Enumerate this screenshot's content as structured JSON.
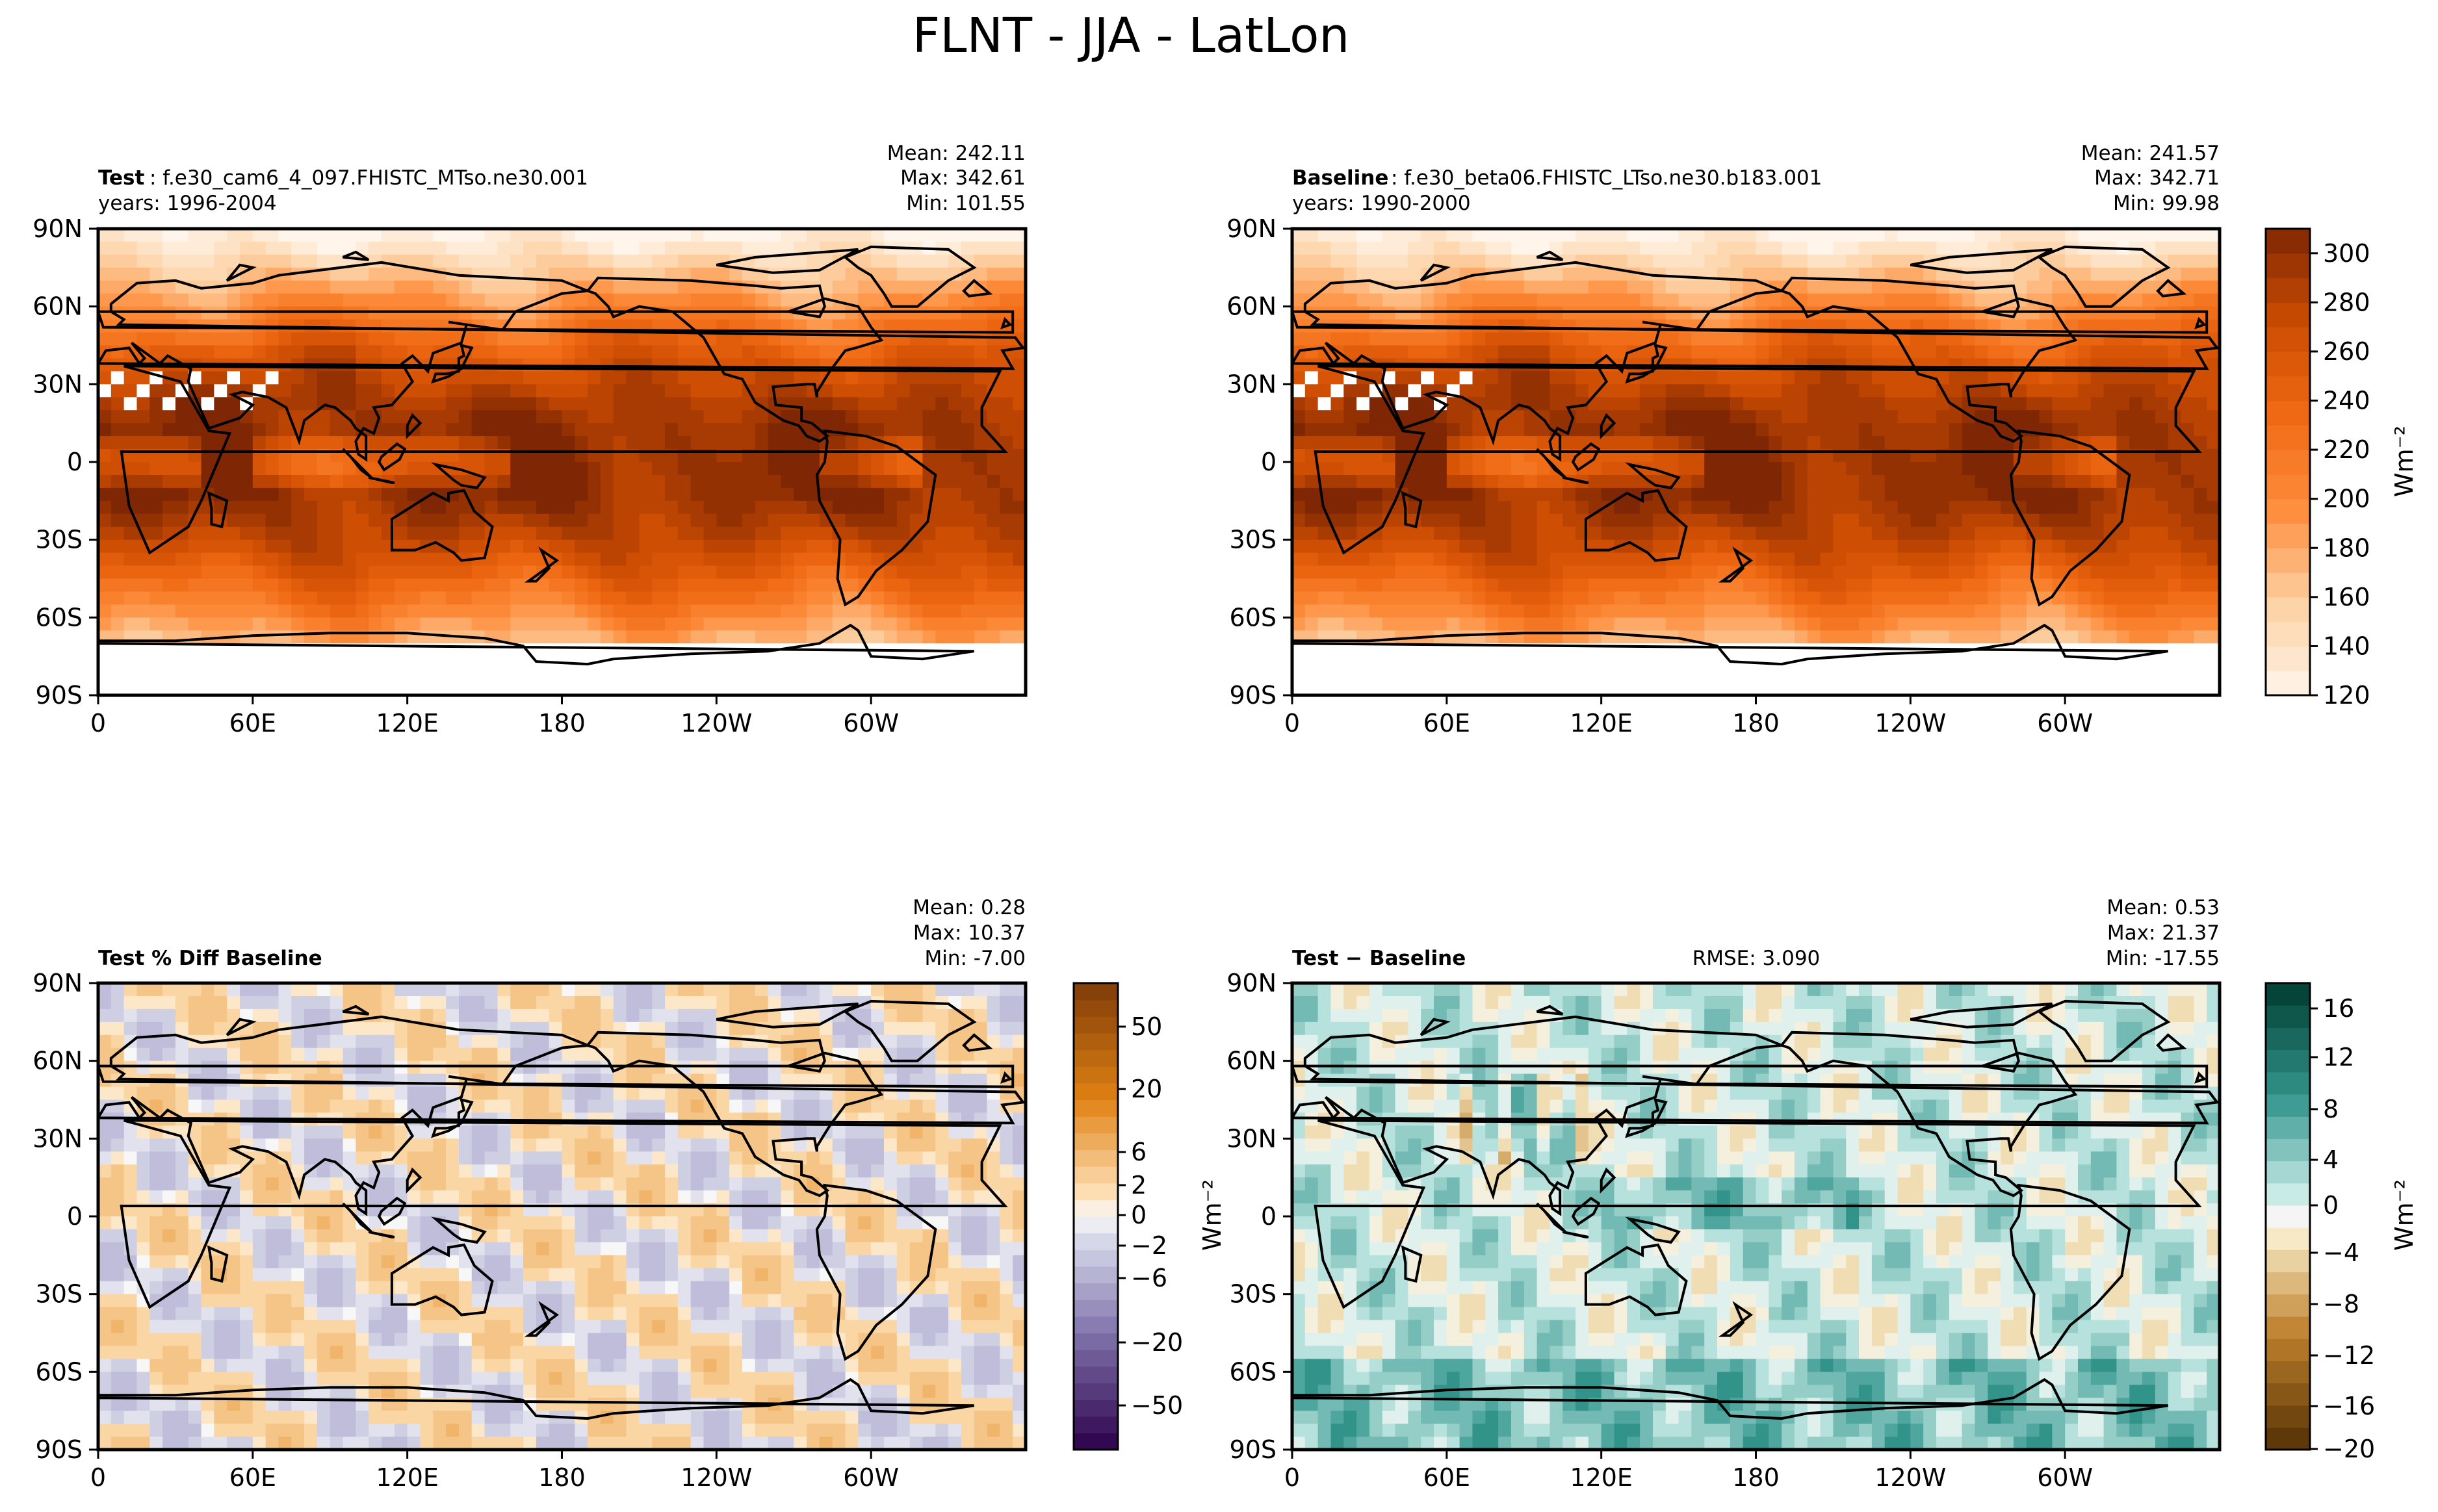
{
  "figure_title": "FLNT - JJA - LatLon",
  "x_ticks": [
    "0",
    "60E",
    "120E",
    "180",
    "120W",
    "60W"
  ],
  "y_ticks": [
    "90N",
    "60N",
    "30N",
    "0",
    "30S",
    "60S",
    "90S"
  ],
  "panels": [
    {
      "id": "test",
      "label_bold": "Test",
      "label_rest": ": f.e30_cam6_4_097.FHISTC_MTso.ne30.001",
      "years": "years: 1996-2004",
      "stats": [
        "Mean: 242.11",
        "Max: 342.61",
        "Min: 101.55"
      ],
      "rmse": "",
      "colormap": "Oranges"
    },
    {
      "id": "baseline",
      "label_bold": "Baseline",
      "label_rest": ": f.e30_beta06.FHISTC_LTso.ne30.b183.001",
      "years": "years: 1990-2000",
      "stats": [
        "Mean: 241.57",
        "Max: 342.71",
        "Min: 99.98"
      ],
      "rmse": "",
      "colormap": "Oranges"
    },
    {
      "id": "pctdiff",
      "label_bold": "Test % Diff Baseline",
      "label_rest": "",
      "years": "",
      "stats": [
        "Mean:  0.28",
        "Max: 10.37",
        "Min: -7.00"
      ],
      "rmse": "",
      "colormap": "PuOr_r"
    },
    {
      "id": "diff",
      "label_bold": "Test − Baseline",
      "label_rest": "",
      "years": "",
      "stats": [
        "Mean:  0.53",
        "Max: 21.37",
        "Min: -17.55"
      ],
      "rmse": "RMSE: 3.090",
      "colormap": "BrBG"
    }
  ],
  "colorbars": {
    "top": {
      "ticks": [
        "300",
        "280",
        "260",
        "240",
        "220",
        "200",
        "180",
        "160",
        "140",
        "120"
      ],
      "unit": "Wm⁻²"
    },
    "pctdiff": {
      "ticks": [
        "50",
        "20",
        "6",
        "2",
        "0",
        "−2",
        "−6",
        "−20",
        "−50"
      ],
      "unit": ""
    },
    "diff": {
      "ticks": [
        "16",
        "12",
        "8",
        "4",
        "0",
        "−4",
        "−8",
        "−12",
        "−16",
        "−20"
      ],
      "unit": "Wm⁻²"
    }
  },
  "chart_data": [
    {
      "type": "heatmap",
      "title": "Test : f.e30_cam6_4_097.FHISTC_MTso.ne30.001",
      "subtitle": "years: 1996-2004",
      "stats": {
        "mean": 242.11,
        "max": 342.61,
        "min": 101.55
      },
      "units": "Wm⁻²",
      "xlim": [
        0,
        360
      ],
      "ylim": [
        -90,
        90
      ],
      "xticks": [
        "0",
        "60E",
        "120E",
        "180",
        "120W",
        "60W"
      ],
      "yticks": [
        "90N",
        "60N",
        "30N",
        "0",
        "30S",
        "60S",
        "90S"
      ],
      "colorbar_levels": [
        120,
        130,
        140,
        150,
        160,
        170,
        180,
        190,
        200,
        210,
        220,
        230,
        240,
        250,
        260,
        270,
        280,
        290,
        300,
        310
      ]
    },
    {
      "type": "heatmap",
      "title": "Baseline : f.e30_beta06.FHISTC_LTso.ne30.b183.001",
      "subtitle": "years: 1990-2000",
      "stats": {
        "mean": 241.57,
        "max": 342.71,
        "min": 99.98
      },
      "units": "Wm⁻²",
      "xlim": [
        0,
        360
      ],
      "ylim": [
        -90,
        90
      ],
      "xticks": [
        "0",
        "60E",
        "120E",
        "180",
        "120W",
        "60W"
      ],
      "yticks": [
        "90N",
        "60N",
        "30N",
        "0",
        "30S",
        "60S",
        "90S"
      ],
      "colorbar_levels": [
        120,
        130,
        140,
        150,
        160,
        170,
        180,
        190,
        200,
        210,
        220,
        230,
        240,
        250,
        260,
        270,
        280,
        290,
        300,
        310
      ]
    },
    {
      "type": "heatmap",
      "title": "Test % Diff Baseline",
      "stats": {
        "mean": 0.28,
        "max": 10.37,
        "min": -7.0
      },
      "xlim": [
        0,
        360
      ],
      "ylim": [
        -90,
        90
      ],
      "xticks": [
        "0",
        "60E",
        "120E",
        "180",
        "120W",
        "60W"
      ],
      "yticks": [
        "90N",
        "60N",
        "30N",
        "0",
        "30S",
        "60S",
        "90S"
      ],
      "colorbar_levels": [
        -100,
        -50,
        -40,
        -30,
        -20,
        -15,
        -10,
        -8,
        -6,
        -5,
        -4,
        -3,
        -2,
        -1,
        0,
        1,
        2,
        3,
        4,
        5,
        6,
        8,
        10,
        15,
        20,
        30,
        40,
        50,
        100
      ]
    },
    {
      "type": "heatmap",
      "title": "Test − Baseline",
      "rmse": 3.09,
      "stats": {
        "mean": 0.53,
        "max": 21.37,
        "min": -17.55
      },
      "units": "Wm⁻²",
      "xlim": [
        0,
        360
      ],
      "ylim": [
        -90,
        90
      ],
      "xticks": [
        "0",
        "60E",
        "120E",
        "180",
        "120W",
        "60W"
      ],
      "yticks": [
        "90N",
        "60N",
        "30N",
        "0",
        "30S",
        "60S",
        "90S"
      ],
      "colorbar_levels": [
        -20,
        -18,
        -16,
        -14,
        -12,
        -10,
        -8,
        -6,
        -4,
        -2,
        -1,
        0,
        1,
        2,
        4,
        6,
        8,
        10,
        12,
        14,
        16,
        18
      ]
    }
  ]
}
